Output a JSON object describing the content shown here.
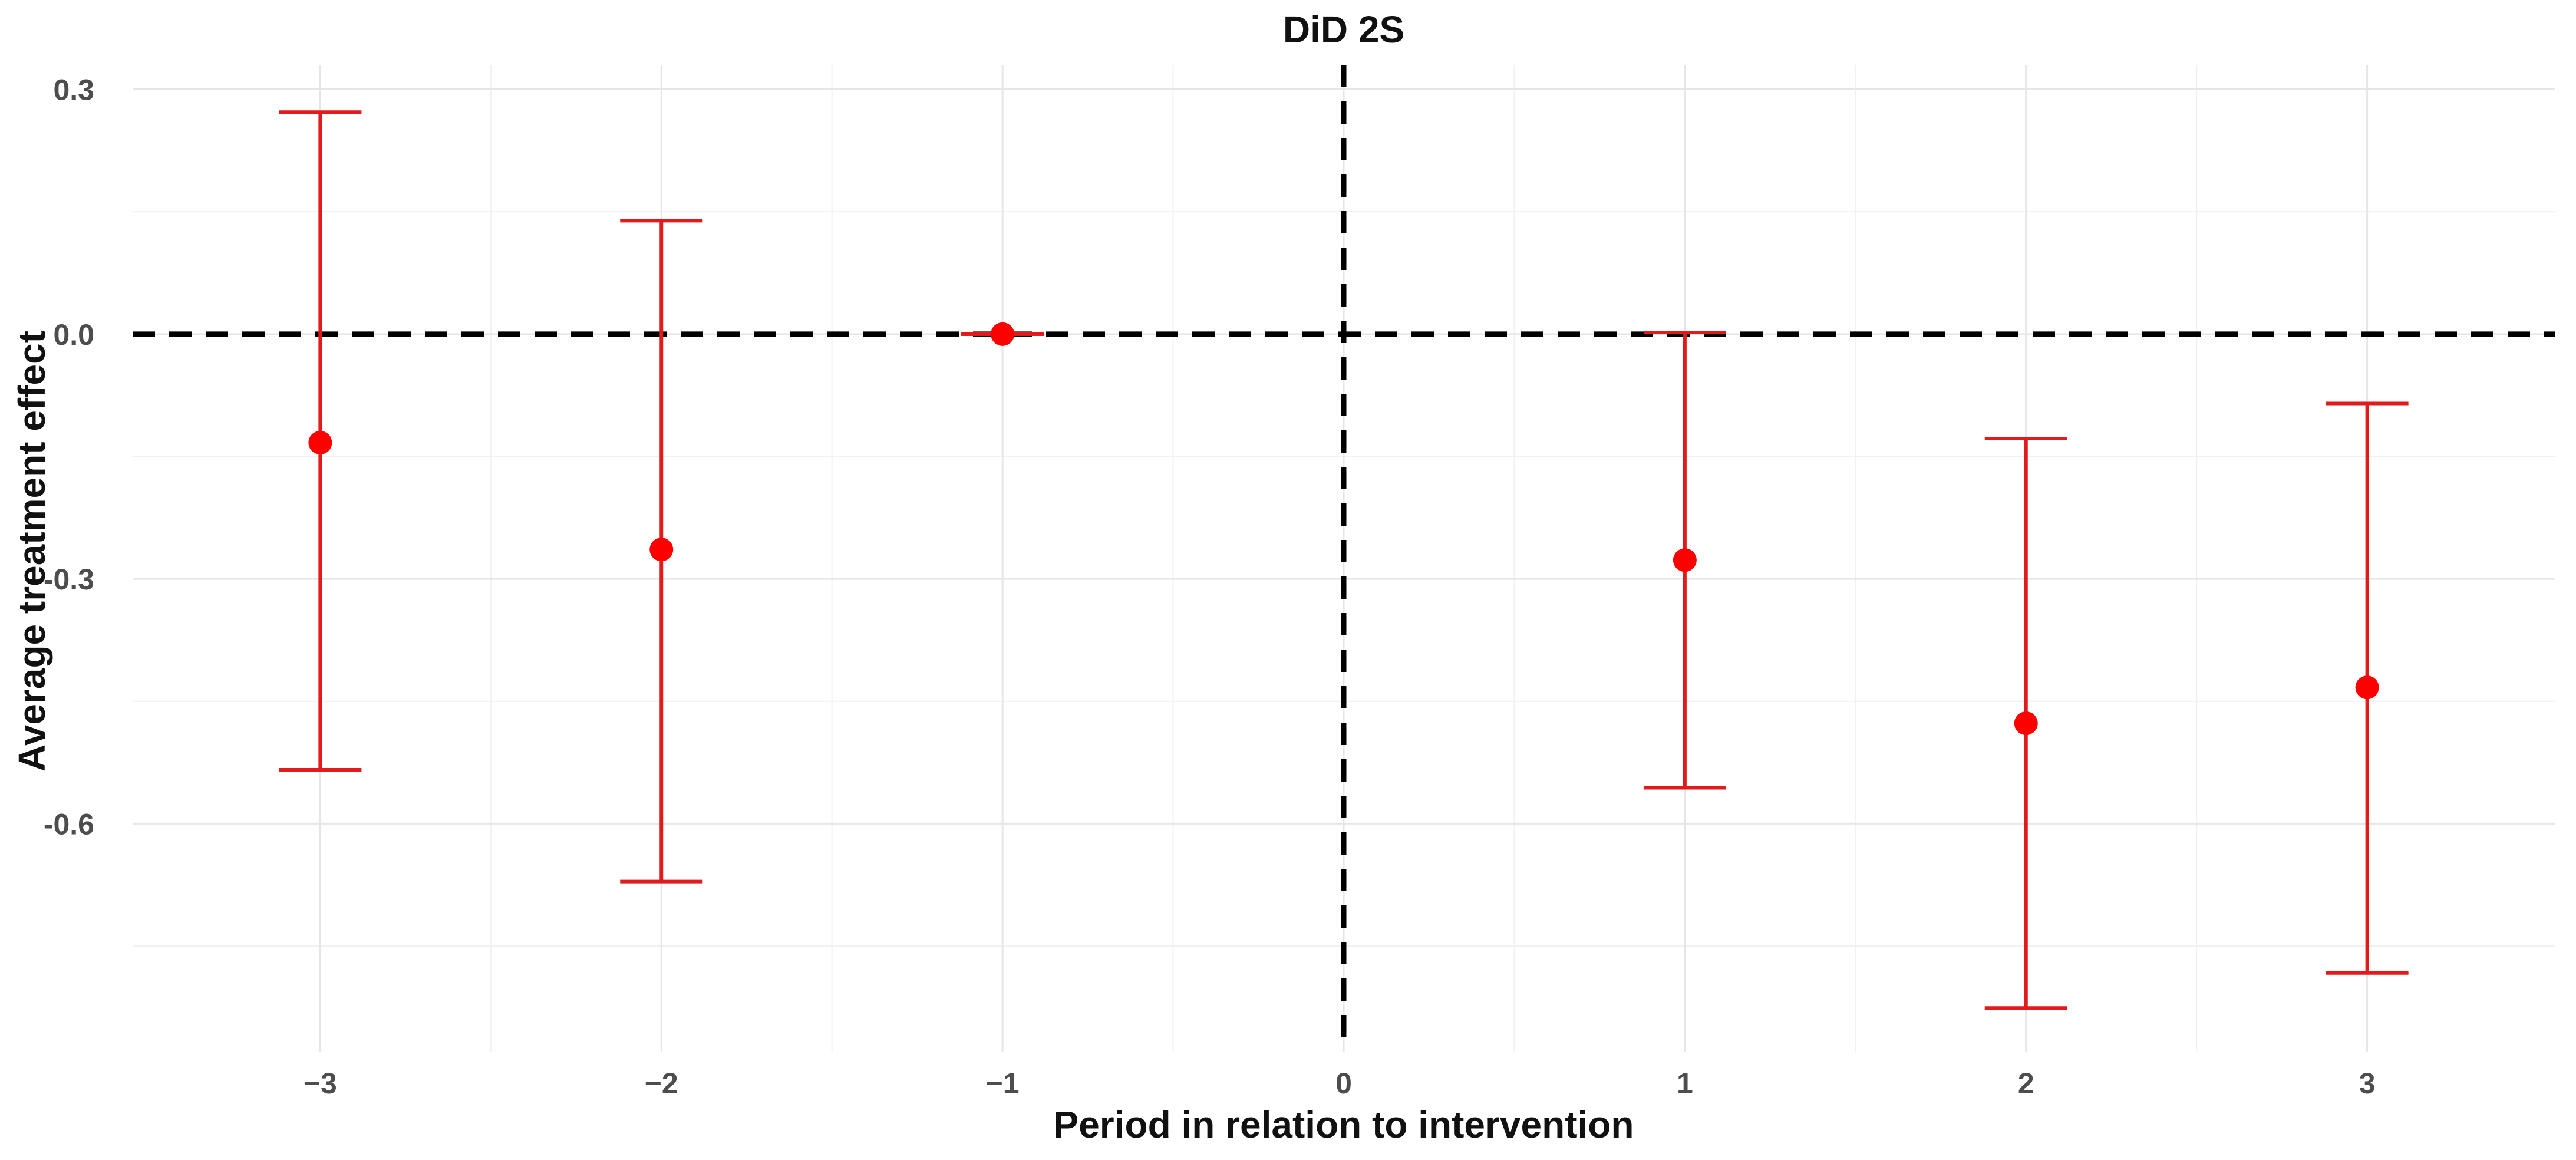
{
  "chart_data": {
    "type": "scatter",
    "title": "DiD 2S",
    "xlabel": "Period in relation to intervention",
    "ylabel": "Average treatment effect",
    "xlim": [
      -3.55,
      3.55
    ],
    "ylim": [
      -0.88,
      0.33
    ],
    "x_ticks": [
      -3,
      -2,
      -1,
      0,
      1,
      2,
      3
    ],
    "x_tick_labels": [
      "−3",
      "−2",
      "−1",
      "0",
      "1",
      "2",
      "3"
    ],
    "y_ticks": [
      0.3,
      0.0,
      -0.3,
      -0.6
    ],
    "y_tick_labels": [
      "0.3",
      "0.0",
      "-0.3",
      "-0.6"
    ],
    "y_minor_ticks": [
      0.15,
      -0.15,
      -0.45,
      -0.75
    ],
    "reference_lines": {
      "horizontal": 0.0,
      "vertical": 0
    },
    "series": [
      {
        "name": "estimate",
        "points": [
          {
            "x": -3,
            "y": -0.133,
            "lower": -0.534,
            "upper": 0.272
          },
          {
            "x": -2,
            "y": -0.264,
            "lower": -0.671,
            "upper": 0.139
          },
          {
            "x": -1,
            "y": 0.0,
            "lower": 0.0,
            "upper": 0.0
          },
          {
            "x": 1,
            "y": -0.277,
            "lower": -0.556,
            "upper": 0.002
          },
          {
            "x": 2,
            "y": -0.477,
            "lower": -0.826,
            "upper": -0.128
          },
          {
            "x": 3,
            "y": -0.433,
            "lower": -0.783,
            "upper": -0.085
          }
        ]
      }
    ],
    "colors": {
      "point": "#ff0000",
      "errorbar": "#e31a1c",
      "reference": "#000000",
      "grid": "#e6e6e6"
    }
  }
}
